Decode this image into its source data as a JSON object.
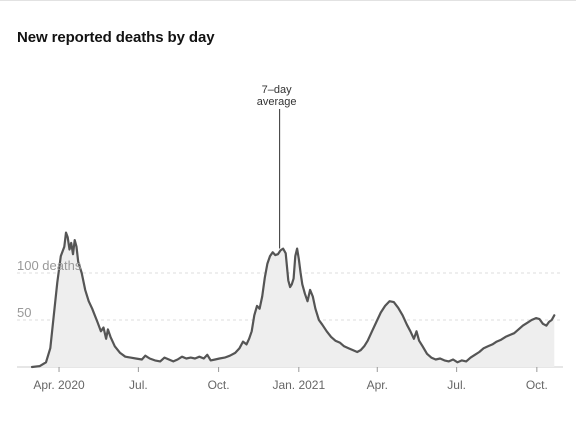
{
  "page_title": "New reported deaths by day",
  "chart_data": {
    "type": "area",
    "title": "New reported deaths by day",
    "xlabel": "",
    "ylabel": "",
    "ylim": [
      0,
      150
    ],
    "grid": true,
    "y_ticks": [
      {
        "value": 100,
        "label": "100 deaths"
      },
      {
        "value": 50,
        "label": "50"
      }
    ],
    "x_ticks": [
      {
        "date": "2020-04-01",
        "label": "Apr. 2020"
      },
      {
        "date": "2020-07-01",
        "label": "Jul."
      },
      {
        "date": "2020-10-01",
        "label": "Oct."
      },
      {
        "date": "2021-01-01",
        "label": "Jan. 2021"
      },
      {
        "date": "2021-04-01",
        "label": "Apr."
      },
      {
        "date": "2021-07-01",
        "label": "Jul."
      },
      {
        "date": "2021-10-01",
        "label": "Oct."
      }
    ],
    "x_range": [
      "2020-03-01",
      "2021-10-31"
    ],
    "annotation": {
      "lines": [
        "7–day",
        "average"
      ],
      "date": "2020-12-10",
      "value": 124
    },
    "series": [
      {
        "values": [
          [
            "2020-03-01",
            0
          ],
          [
            "2020-03-10",
            1
          ],
          [
            "2020-03-17",
            5
          ],
          [
            "2020-03-22",
            20
          ],
          [
            "2020-03-26",
            55
          ],
          [
            "2020-03-30",
            90
          ],
          [
            "2020-04-03",
            118
          ],
          [
            "2020-04-07",
            128
          ],
          [
            "2020-04-09",
            143
          ],
          [
            "2020-04-11",
            138
          ],
          [
            "2020-04-13",
            125
          ],
          [
            "2020-04-15",
            132
          ],
          [
            "2020-04-17",
            120
          ],
          [
            "2020-04-19",
            135
          ],
          [
            "2020-04-21",
            128
          ],
          [
            "2020-04-23",
            112
          ],
          [
            "2020-04-27",
            100
          ],
          [
            "2020-05-01",
            82
          ],
          [
            "2020-05-05",
            70
          ],
          [
            "2020-05-09",
            62
          ],
          [
            "2020-05-12",
            55
          ],
          [
            "2020-05-15",
            48
          ],
          [
            "2020-05-19",
            38
          ],
          [
            "2020-05-22",
            42
          ],
          [
            "2020-05-25",
            30
          ],
          [
            "2020-05-27",
            40
          ],
          [
            "2020-05-30",
            32
          ],
          [
            "2020-06-04",
            22
          ],
          [
            "2020-06-10",
            15
          ],
          [
            "2020-06-16",
            11
          ],
          [
            "2020-06-22",
            10
          ],
          [
            "2020-06-28",
            9
          ],
          [
            "2020-07-05",
            8
          ],
          [
            "2020-07-09",
            12
          ],
          [
            "2020-07-14",
            9
          ],
          [
            "2020-07-20",
            7
          ],
          [
            "2020-07-26",
            6
          ],
          [
            "2020-07-31",
            10
          ],
          [
            "2020-08-05",
            8
          ],
          [
            "2020-08-10",
            6
          ],
          [
            "2020-08-15",
            8
          ],
          [
            "2020-08-20",
            11
          ],
          [
            "2020-08-25",
            9
          ],
          [
            "2020-08-30",
            10
          ],
          [
            "2020-09-04",
            9
          ],
          [
            "2020-09-09",
            11
          ],
          [
            "2020-09-14",
            9
          ],
          [
            "2020-09-18",
            13
          ],
          [
            "2020-09-22",
            7
          ],
          [
            "2020-09-27",
            8
          ],
          [
            "2020-10-02",
            9
          ],
          [
            "2020-10-08",
            10
          ],
          [
            "2020-10-14",
            12
          ],
          [
            "2020-10-20",
            15
          ],
          [
            "2020-10-25",
            20
          ],
          [
            "2020-10-29",
            27
          ],
          [
            "2020-11-02",
            24
          ],
          [
            "2020-11-05",
            30
          ],
          [
            "2020-11-08",
            38
          ],
          [
            "2020-11-11",
            55
          ],
          [
            "2020-11-14",
            65
          ],
          [
            "2020-11-17",
            62
          ],
          [
            "2020-11-20",
            75
          ],
          [
            "2020-11-23",
            95
          ],
          [
            "2020-11-26",
            110
          ],
          [
            "2020-11-29",
            118
          ],
          [
            "2020-12-02",
            122
          ],
          [
            "2020-12-05",
            119
          ],
          [
            "2020-12-08",
            120
          ],
          [
            "2020-12-11",
            124
          ],
          [
            "2020-12-14",
            126
          ],
          [
            "2020-12-17",
            121
          ],
          [
            "2020-12-20",
            92
          ],
          [
            "2020-12-22",
            85
          ],
          [
            "2020-12-24",
            88
          ],
          [
            "2020-12-26",
            94
          ],
          [
            "2020-12-28",
            118
          ],
          [
            "2020-12-30",
            126
          ],
          [
            "2021-01-01",
            115
          ],
          [
            "2021-01-03",
            100
          ],
          [
            "2021-01-05",
            88
          ],
          [
            "2021-01-08",
            78
          ],
          [
            "2021-01-11",
            70
          ],
          [
            "2021-01-14",
            82
          ],
          [
            "2021-01-17",
            75
          ],
          [
            "2021-01-20",
            62
          ],
          [
            "2021-01-24",
            50
          ],
          [
            "2021-01-28",
            45
          ],
          [
            "2021-02-02",
            38
          ],
          [
            "2021-02-07",
            32
          ],
          [
            "2021-02-12",
            28
          ],
          [
            "2021-02-17",
            26
          ],
          [
            "2021-02-22",
            22
          ],
          [
            "2021-02-27",
            20
          ],
          [
            "2021-03-04",
            18
          ],
          [
            "2021-03-09",
            16
          ],
          [
            "2021-03-13",
            18
          ],
          [
            "2021-03-17",
            22
          ],
          [
            "2021-03-21",
            28
          ],
          [
            "2021-03-26",
            38
          ],
          [
            "2021-03-31",
            48
          ],
          [
            "2021-04-05",
            58
          ],
          [
            "2021-04-10",
            65
          ],
          [
            "2021-04-15",
            70
          ],
          [
            "2021-04-20",
            69
          ],
          [
            "2021-04-25",
            63
          ],
          [
            "2021-04-30",
            55
          ],
          [
            "2021-05-05",
            45
          ],
          [
            "2021-05-09",
            38
          ],
          [
            "2021-05-13",
            30
          ],
          [
            "2021-05-16",
            38
          ],
          [
            "2021-05-19",
            28
          ],
          [
            "2021-05-23",
            22
          ],
          [
            "2021-05-28",
            14
          ],
          [
            "2021-06-02",
            10
          ],
          [
            "2021-06-07",
            8
          ],
          [
            "2021-06-12",
            9
          ],
          [
            "2021-06-17",
            7
          ],
          [
            "2021-06-22",
            6
          ],
          [
            "2021-06-27",
            8
          ],
          [
            "2021-07-02",
            5
          ],
          [
            "2021-07-07",
            7
          ],
          [
            "2021-07-12",
            6
          ],
          [
            "2021-07-17",
            10
          ],
          [
            "2021-07-22",
            13
          ],
          [
            "2021-07-27",
            16
          ],
          [
            "2021-08-01",
            20
          ],
          [
            "2021-08-06",
            22
          ],
          [
            "2021-08-11",
            24
          ],
          [
            "2021-08-16",
            27
          ],
          [
            "2021-08-21",
            29
          ],
          [
            "2021-08-26",
            32
          ],
          [
            "2021-08-31",
            34
          ],
          [
            "2021-09-05",
            36
          ],
          [
            "2021-09-10",
            40
          ],
          [
            "2021-09-15",
            44
          ],
          [
            "2021-09-20",
            47
          ],
          [
            "2021-09-25",
            50
          ],
          [
            "2021-09-30",
            52
          ],
          [
            "2021-10-04",
            51
          ],
          [
            "2021-10-08",
            46
          ],
          [
            "2021-10-12",
            44
          ],
          [
            "2021-10-15",
            48
          ],
          [
            "2021-10-18",
            50
          ],
          [
            "2021-10-21",
            55
          ]
        ]
      }
    ],
    "colors": {
      "line": "#555555",
      "fill": "#eeeeee",
      "grid": "#dddddd",
      "annotation": "#333333"
    }
  }
}
